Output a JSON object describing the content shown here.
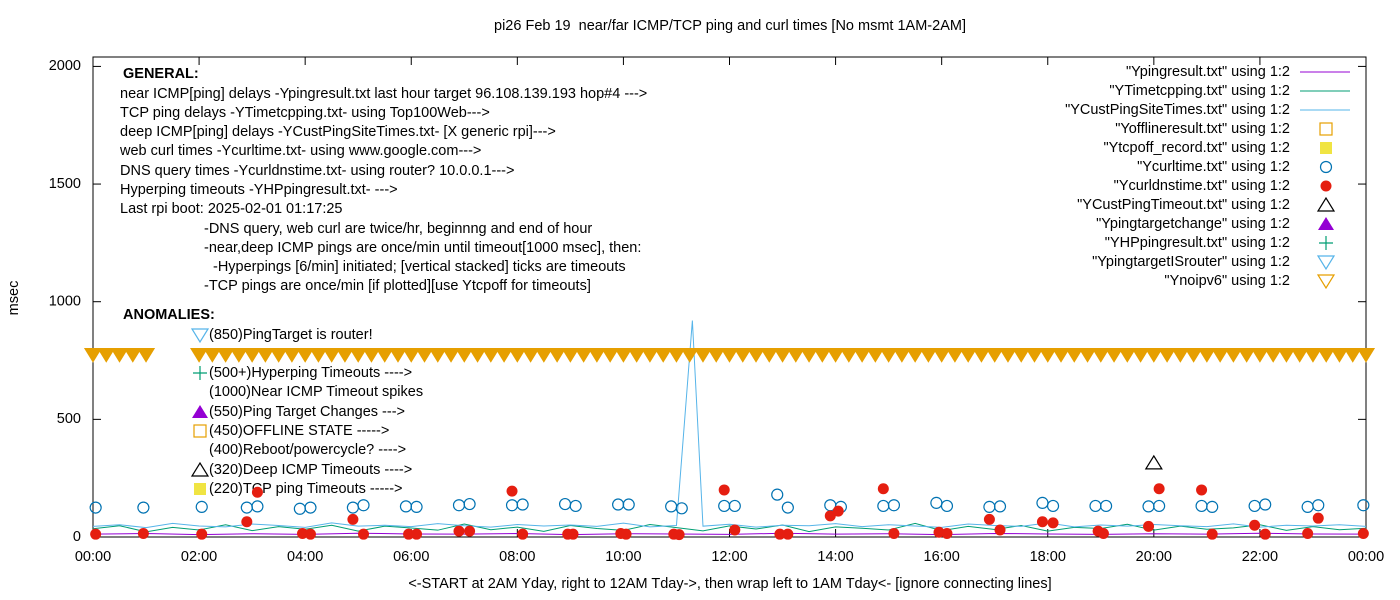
{
  "chart_data": {
    "type": "mixed",
    "title": "pi26 Feb 19  near/far ICMP/TCP ping and curl times [No msmt 1AM-2AM]",
    "x_label": "<-START at 2AM Yday, right to 12AM Tday->, then wrap left to 1AM Tday<- [ignore connecting lines]",
    "y_label": "msec",
    "xlim": [
      0,
      24
    ],
    "ylim": [
      0,
      2040
    ],
    "xticks": [
      {
        "value": 0,
        "label": "00:00"
      },
      {
        "value": 2,
        "label": "02:00"
      },
      {
        "value": 4,
        "label": "04:00"
      },
      {
        "value": 6,
        "label": "06:00"
      },
      {
        "value": 8,
        "label": "08:00"
      },
      {
        "value": 10,
        "label": "10:00"
      },
      {
        "value": 12,
        "label": "12:00"
      },
      {
        "value": 14,
        "label": "14:00"
      },
      {
        "value": 16,
        "label": "16:00"
      },
      {
        "value": 18,
        "label": "18:00"
      },
      {
        "value": 20,
        "label": "20:00"
      },
      {
        "value": 22,
        "label": "22:00"
      },
      {
        "value": 24,
        "label": "00:00"
      }
    ],
    "yticks": [
      0,
      500,
      1000,
      1500,
      2000
    ],
    "legend": "top-right",
    "annotations": [
      "GENERAL:",
      "near ICMP[ping] delays -Ypingresult.txt last hour target 96.108.139.193 hop#4 --->",
      "TCP ping delays -YTimetcpping.txt- using Top100Web--->",
      "deep ICMP[ping] delays -YCustPingSiteTimes.txt- [X generic rpi]--->",
      "web curl times -Ycurltime.txt- using www.google.com--->",
      "DNS query times -Ycurldnstime.txt- using router? 10.0.0.1--->",
      "Hyperping timeouts -YHPpingresult.txt- --->",
      "Last rpi boot: 2025-02-01 01:17:25",
      "-DNS query, web curl are twice/hr, beginnng and end of hour",
      "-near,deep ICMP pings are once/min until timeout[1000 msec], then:",
      "-Hyperpings [6/min] initiated; [vertical stacked] ticks are timeouts",
      "-TCP pings are once/min [if plotted][use Ytcpoff for timeouts]",
      "ANOMALIES:",
      "(850)PingTarget is router!",
      "(500+)Hyperping Timeouts ---->",
      "(1000)Near ICMP Timeout spikes",
      "(550)Ping Target Changes --->",
      "(450)OFFLINE STATE ----->",
      "(400)Reboot/powercycle? ---->",
      "(320)Deep ICMP Timeouts ---->",
      "(220)TCP ping Timeouts ----->"
    ],
    "series": [
      {
        "name": "\"Ypingresult.txt\" using 1:2",
        "color": "#9400d3",
        "marker": "line",
        "x": [
          0,
          1,
          2,
          3,
          4,
          5,
          6,
          7,
          8,
          9,
          10,
          11,
          12,
          13,
          14,
          15,
          16,
          17,
          18,
          19,
          20,
          21,
          22,
          23,
          24
        ],
        "values": [
          12,
          15,
          10,
          14,
          11,
          16,
          13,
          12,
          15,
          10,
          14,
          13,
          11,
          16,
          12,
          14,
          10,
          15,
          13,
          11,
          14,
          12,
          16,
          13,
          12
        ]
      },
      {
        "name": "\"YTimetcpping.txt\" using 1:2",
        "color": "#009e73",
        "marker": "line",
        "x": [
          0,
          0.5,
          1,
          1.5,
          2,
          2.5,
          3,
          3.5,
          4,
          4.5,
          5,
          5.5,
          6,
          6.5,
          7,
          7.5,
          8,
          8.5,
          9,
          9.5,
          10,
          10.5,
          11,
          11.5,
          12,
          12.5,
          13,
          13.5,
          14,
          14.5,
          15,
          15.5,
          16,
          16.5,
          17,
          17.5,
          18,
          18.5,
          19,
          19.5,
          20,
          20.5,
          21,
          21.5,
          22,
          22.5,
          23,
          23.5,
          24
        ],
        "values": [
          35,
          48,
          22,
          41,
          30,
          52,
          27,
          44,
          33,
          50,
          25,
          46,
          38,
          29,
          55,
          31,
          42,
          24,
          49,
          36,
          28,
          53,
          40,
          26,
          47,
          34,
          51,
          23,
          43,
          37,
          30,
          58,
          27,
          45,
          32,
          49,
          25,
          41,
          36,
          54,
          29,
          46,
          33,
          39,
          52,
          28,
          44,
          31,
          37
        ]
      },
      {
        "name": "\"YCustPingSiteTimes.txt\" using 1:2",
        "color": "#56b4e9",
        "marker": "line",
        "x": [
          0,
          0.5,
          1,
          1.5,
          2,
          2.5,
          3,
          3.5,
          4,
          4.5,
          5,
          5.5,
          6,
          6.5,
          7,
          7.5,
          8,
          8.5,
          9,
          9.5,
          10,
          10.5,
          11,
          11.3,
          11.5,
          12,
          12.5,
          13,
          13.5,
          14,
          14.5,
          15,
          15.5,
          16,
          16.5,
          17,
          17.5,
          18,
          18.5,
          19,
          19.5,
          20,
          20.5,
          21,
          21.5,
          22,
          22.5,
          23,
          23.5,
          24
        ],
        "values": [
          45,
          52,
          40,
          58,
          47,
          43,
          55,
          49,
          41,
          60,
          46,
          50,
          44,
          57,
          48,
          42,
          53,
          47,
          51,
          45,
          59,
          43,
          49,
          920,
          46,
          54,
          42,
          50,
          48,
          57,
          44,
          52,
          47,
          41,
          55,
          49,
          45,
          60,
          43,
          51,
          46,
          53,
          48,
          44,
          56,
          42,
          50,
          47,
          52,
          45
        ]
      },
      {
        "name": "\"Yofflineresult.txt\" using 1:2",
        "color": "#e69f00",
        "marker": "square-open",
        "x": [],
        "values": []
      },
      {
        "name": "\"Ytcpoff_record.txt\" using 1:2",
        "color": "#f0e442",
        "marker": "square",
        "x": [],
        "values": []
      },
      {
        "name": "\"Ycurltime.txt\" using 1:2",
        "color": "#0072b2",
        "marker": "circle-open",
        "x": [
          0.05,
          0.95,
          2.05,
          2.9,
          3.1,
          3.9,
          4.1,
          4.9,
          5.1,
          5.9,
          6.1,
          6.9,
          7.1,
          7.9,
          8.1,
          8.9,
          9.1,
          9.9,
          10.1,
          10.9,
          11.1,
          11.9,
          12.1,
          12.9,
          13.1,
          13.9,
          14.1,
          14.9,
          15.1,
          15.9,
          16.1,
          16.9,
          17.1,
          17.9,
          18.1,
          18.9,
          19.1,
          19.9,
          20.1,
          20.9,
          21.1,
          21.9,
          22.1,
          22.9,
          23.1,
          23.95
        ],
        "values": [
          125,
          125,
          128,
          125,
          130,
          120,
          125,
          125,
          135,
          130,
          128,
          135,
          140,
          135,
          138,
          140,
          132,
          138,
          138,
          130,
          122,
          132,
          132,
          180,
          125,
          135,
          128,
          132,
          135,
          145,
          132,
          128,
          130,
          145,
          132,
          132,
          132,
          130,
          132,
          132,
          128,
          132,
          138,
          128,
          135,
          135
        ]
      },
      {
        "name": "\"Ycurldnstime.txt\" using 1:2",
        "color": "#e51e10",
        "marker": "circle",
        "x": [
          0.05,
          0.95,
          2.05,
          2.9,
          3.1,
          3.95,
          4.1,
          4.9,
          5.1,
          5.95,
          6.1,
          6.9,
          7.1,
          7.9,
          8.1,
          8.95,
          9.05,
          9.95,
          10.05,
          10.95,
          11.05,
          11.9,
          12.1,
          12.95,
          13.1,
          13.9,
          14.05,
          14.9,
          15.1,
          15.95,
          16.1,
          16.9,
          17.1,
          17.9,
          18.1,
          18.95,
          19.05,
          19.9,
          20.1,
          20.9,
          21.1,
          21.9,
          22.1,
          22.9,
          23.1,
          23.95
        ],
        "values": [
          12,
          15,
          12,
          65,
          190,
          15,
          12,
          75,
          12,
          12,
          12,
          25,
          25,
          195,
          12,
          12,
          12,
          15,
          12,
          12,
          10,
          200,
          30,
          12,
          12,
          90,
          110,
          205,
          15,
          20,
          15,
          75,
          30,
          65,
          60,
          25,
          15,
          45,
          205,
          200,
          12,
          50,
          12,
          15,
          80,
          15
        ]
      },
      {
        "name": "\"YCustPingTimeout.txt\" using 1:2",
        "color": "#000000",
        "marker": "triangle-open",
        "x": [
          20.0
        ],
        "values": [
          315
        ]
      },
      {
        "name": "\"Ypingtargetchange\" using 1:2",
        "color": "#9400d3",
        "marker": "triangle",
        "x": [],
        "values": []
      },
      {
        "name": "\"YHPpingresult.txt\" using 1:2",
        "color": "#009e73",
        "marker": "plus",
        "x": [],
        "values": []
      },
      {
        "name": "\"YpingtargetISrouter\" using 1:2",
        "color": "#56b4e9",
        "marker": "triangle-down-open",
        "x": [],
        "values": []
      },
      {
        "name": "\"Ynoipv6\" using 1:2",
        "color": "#e69f00",
        "marker": "triangle-down-open",
        "fill": true,
        "x": [
          0,
          0.25,
          0.5,
          0.75,
          1,
          2,
          2.25,
          2.5,
          2.75,
          3,
          3.25,
          3.5,
          3.75,
          4,
          4.25,
          4.5,
          4.75,
          5,
          5.25,
          5.5,
          5.75,
          6,
          6.25,
          6.5,
          6.75,
          7,
          7.25,
          7.5,
          7.75,
          8,
          8.25,
          8.5,
          8.75,
          9,
          9.25,
          9.5,
          9.75,
          10,
          10.25,
          10.5,
          10.75,
          11,
          11.25,
          11.5,
          11.75,
          12,
          12.25,
          12.5,
          12.75,
          13,
          13.25,
          13.5,
          13.75,
          14,
          14.25,
          14.5,
          14.75,
          15,
          15.25,
          15.5,
          15.75,
          16,
          16.25,
          16.5,
          16.75,
          17,
          17.25,
          17.5,
          17.75,
          18,
          18.25,
          18.5,
          18.75,
          19,
          19.25,
          19.5,
          19.75,
          20,
          20.25,
          20.5,
          20.75,
          21,
          21.25,
          21.5,
          21.75,
          22,
          22.25,
          22.5,
          22.75,
          23,
          23.25,
          23.5,
          23.75,
          24
        ],
        "values": [
          775,
          775,
          775,
          775,
          775,
          775,
          775,
          775,
          775,
          775,
          775,
          775,
          775,
          775,
          775,
          775,
          775,
          775,
          775,
          775,
          775,
          775,
          775,
          775,
          775,
          775,
          775,
          775,
          775,
          775,
          775,
          775,
          775,
          775,
          775,
          775,
          775,
          775,
          775,
          775,
          775,
          775,
          775,
          775,
          775,
          775,
          775,
          775,
          775,
          775,
          775,
          775,
          775,
          775,
          775,
          775,
          775,
          775,
          775,
          775,
          775,
          775,
          775,
          775,
          775,
          775,
          775,
          775,
          775,
          775,
          775,
          775,
          775,
          775,
          775,
          775,
          775,
          775,
          775,
          775,
          775,
          775,
          775,
          775,
          775,
          775,
          775,
          775,
          775,
          775,
          775,
          775,
          775,
          775
        ]
      }
    ]
  }
}
